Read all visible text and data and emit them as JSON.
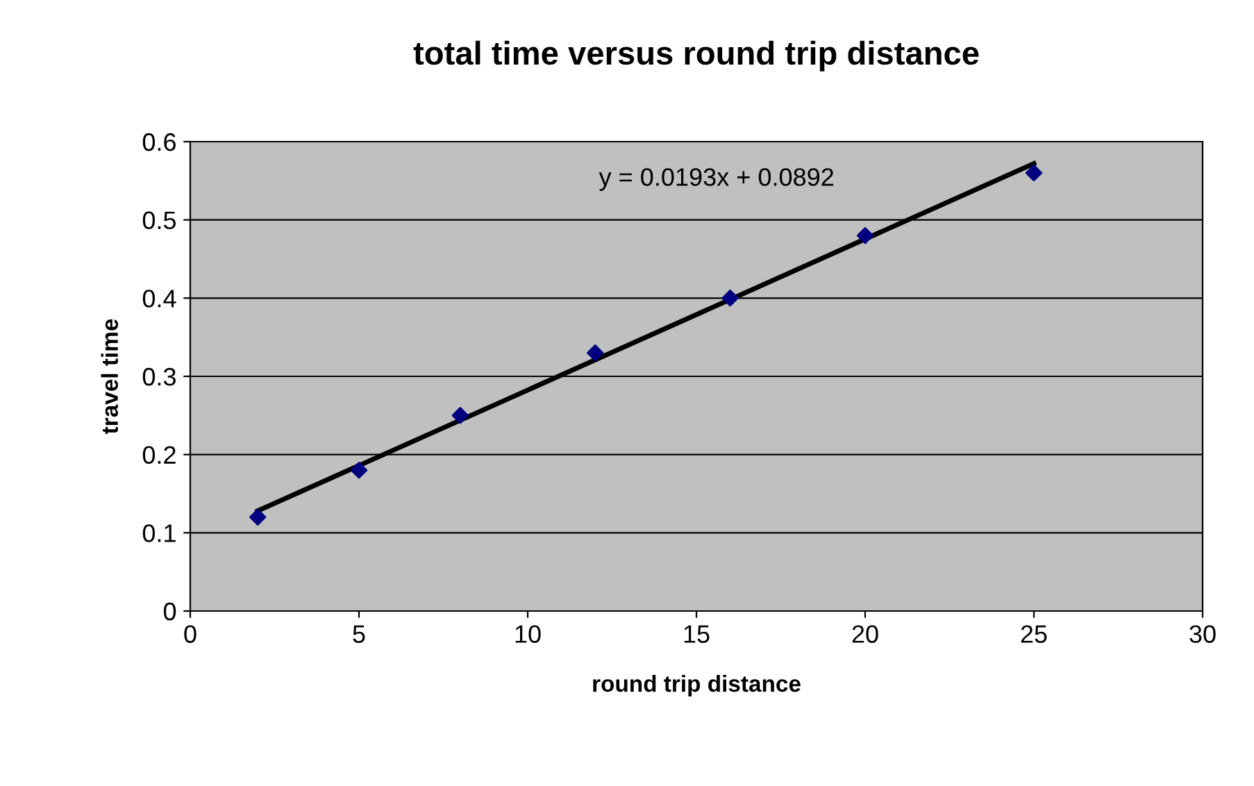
{
  "chart_data": {
    "type": "scatter",
    "title": "total time versus round trip distance",
    "xlabel": "round trip distance",
    "ylabel": "travel time",
    "annotations": [
      "y = 0.0193x + 0.0892"
    ],
    "series": [
      {
        "color": "#000080",
        "marker": "diamond",
        "x": [
          2,
          5,
          8,
          12,
          16,
          20,
          25
        ],
        "values": [
          0.12,
          0.18,
          0.25,
          0.33,
          0.4,
          0.48,
          0.56
        ]
      },
      {
        "type": "line",
        "color": "#000000",
        "marker": "none",
        "line_style": "solid",
        "x": [
          2,
          25
        ],
        "values": [
          0.128,
          0.572
        ]
      }
    ],
    "xlim": [
      0,
      30
    ],
    "xticks": [
      0,
      5,
      10,
      15,
      20,
      25,
      30
    ],
    "ylim": [
      0,
      0.6
    ],
    "yticks": [
      0,
      0.1,
      0.2,
      0.3,
      0.4,
      0.5,
      0.6
    ],
    "grid": "y"
  }
}
